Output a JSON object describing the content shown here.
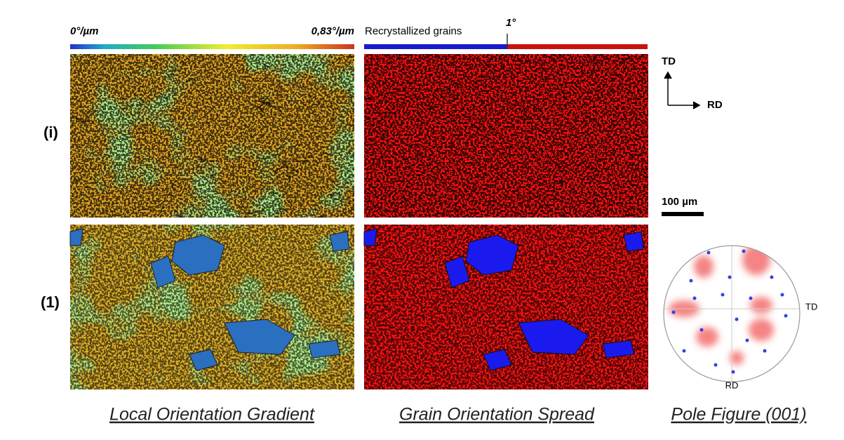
{
  "colorbar": {
    "min_label": "0°/µm",
    "max_label": "0,83°/µm"
  },
  "gos_legend": {
    "label": "Recrystallized grains",
    "threshold": "1°"
  },
  "axes": {
    "vertical": "TD",
    "horizontal": "RD"
  },
  "rows": [
    "(i)",
    "(1)"
  ],
  "scale_bar": "100 µm",
  "pole_figure": {
    "right_label": "TD",
    "bottom_label": "RD"
  },
  "captions": [
    "Local Orientation Gradient",
    "Grain Orientation Spread",
    "Pole Figure (001)"
  ]
}
